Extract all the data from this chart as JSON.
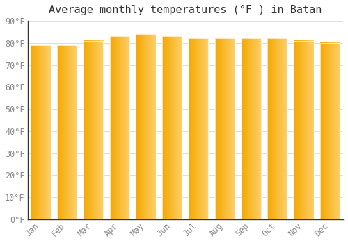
{
  "title": "Average monthly temperatures (°F ) in Batan",
  "months": [
    "Jan",
    "Feb",
    "Mar",
    "Apr",
    "May",
    "Jun",
    "Jul",
    "Aug",
    "Sep",
    "Oct",
    "Nov",
    "Dec"
  ],
  "values": [
    79,
    79,
    81,
    83,
    84,
    83,
    82,
    82,
    82,
    82,
    81,
    80
  ],
  "bar_color_left": "#F5A800",
  "bar_color_right": "#FDD06A",
  "background_color": "#FFFFFF",
  "grid_color": "#DDDDDD",
  "text_color": "#888888",
  "title_color": "#333333",
  "ylim": [
    0,
    90
  ],
  "yticks": [
    0,
    10,
    20,
    30,
    40,
    50,
    60,
    70,
    80,
    90
  ],
  "ytick_labels": [
    "0°F",
    "10°F",
    "20°F",
    "30°F",
    "40°F",
    "50°F",
    "60°F",
    "70°F",
    "80°F",
    "90°F"
  ],
  "title_fontsize": 11,
  "tick_fontsize": 8.5,
  "bar_width": 0.75
}
